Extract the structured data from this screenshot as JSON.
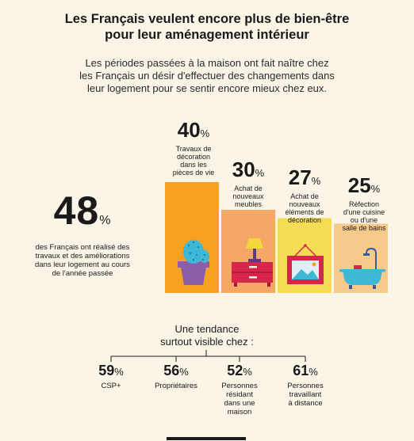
{
  "title_line1": "Les Français veulent encore plus de bien-être",
  "title_line2": "pour leur aménagement intérieur",
  "subtitle_line1": "Les périodes passées à la maison ont fait naître chez",
  "subtitle_line2": "les Français un désir d'effectuer des changements dans",
  "subtitle_line3": "leur logement pour se sentir encore mieux chez eux.",
  "headline": {
    "value": "48",
    "unit": "%",
    "text_lines": [
      "des Français ont réalisé des",
      "travaux et des améliorations",
      "dans leur logement au cours",
      "de l'année passée"
    ]
  },
  "chart_data": {
    "type": "bar",
    "categories": [
      "Travaux de décoration dans les pièces de vie",
      "Achat de nouveaux meubles",
      "Achat de nouveaux éléments de décoration",
      "Réfection d'une cuisine ou d'une salle de bains"
    ],
    "values": [
      40,
      30,
      27,
      25
    ],
    "unit": "%",
    "label_lines": [
      [
        "Travaux de",
        "décoration",
        "dans les",
        "pièces de vie"
      ],
      [
        "Achat de",
        "nouveaux",
        "meubles"
      ],
      [
        "Achat de",
        "nouveaux",
        "éléments de",
        "décoration"
      ],
      [
        "Réfection",
        "d'une cuisine",
        "ou d'une",
        "salle de bains"
      ]
    ],
    "colors": [
      "#f7a021",
      "#f5a866",
      "#f4dd55",
      "#f7c98a"
    ],
    "icons": [
      "cactus-pot-icon",
      "lamp-nightstand-icon",
      "framed-picture-icon",
      "bathtub-icon"
    ]
  },
  "trend": {
    "title_line1": "Une tendance",
    "title_line2": "surtout visible chez :",
    "items": [
      {
        "value": "59",
        "unit": "%",
        "lines": [
          "CSP+"
        ]
      },
      {
        "value": "56",
        "unit": "%",
        "lines": [
          "Propriétaires"
        ]
      },
      {
        "value": "52",
        "unit": "%",
        "lines": [
          "Personnes",
          "résidant",
          "dans une",
          "maison"
        ]
      },
      {
        "value": "61",
        "unit": "%",
        "lines": [
          "Personnes",
          "travaillant",
          "à distance"
        ]
      }
    ]
  }
}
